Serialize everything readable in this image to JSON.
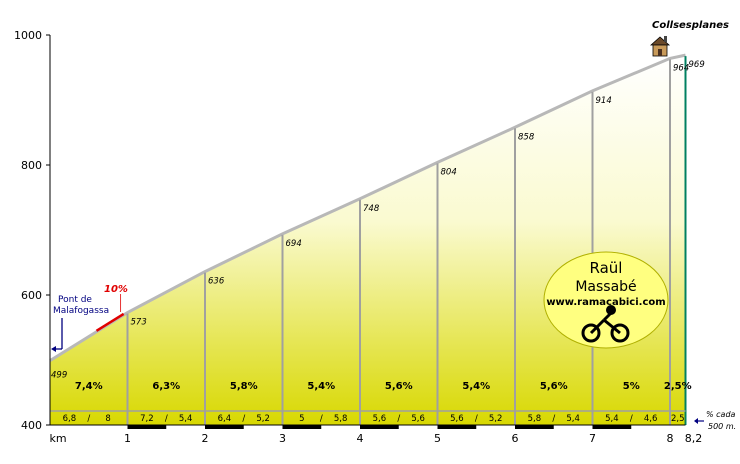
{
  "chart_data": {
    "type": "area",
    "x_unit": "km",
    "y_unit_ticks": [
      400,
      600,
      800,
      1000
    ],
    "xlim": [
      0,
      8.2
    ],
    "ylim": [
      400,
      1000
    ],
    "x_ticks": [
      "km",
      "1",
      "2",
      "3",
      "4",
      "5",
      "6",
      "7",
      "8",
      "8,2"
    ],
    "profile": [
      {
        "km": 0,
        "elev": 499
      },
      {
        "km": 1,
        "elev": 573
      },
      {
        "km": 2,
        "elev": 636
      },
      {
        "km": 3,
        "elev": 694
      },
      {
        "km": 4,
        "elev": 748
      },
      {
        "km": 5,
        "elev": 804
      },
      {
        "km": 6,
        "elev": 858
      },
      {
        "km": 7,
        "elev": 914
      },
      {
        "km": 8,
        "elev": 964
      },
      {
        "km": 8.2,
        "elev": 969
      }
    ],
    "elevation_labels": [
      "499",
      "573",
      "636",
      "694",
      "748",
      "804",
      "858",
      "914",
      "964",
      "969"
    ],
    "segments": [
      {
        "grade": "7,4%",
        "halves": [
          "6,8",
          "8"
        ]
      },
      {
        "grade": "6,3%",
        "halves": [
          "7,2",
          "5,4"
        ]
      },
      {
        "grade": "5,8%",
        "halves": [
          "6,4",
          "5,2"
        ]
      },
      {
        "grade": "5,4%",
        "halves": [
          "5",
          "5,8"
        ]
      },
      {
        "grade": "5,6%",
        "halves": [
          "5,6",
          "5,6"
        ]
      },
      {
        "grade": "5,4%",
        "halves": [
          "5,6",
          "5,2"
        ]
      },
      {
        "grade": "5,6%",
        "halves": [
          "5,8",
          "5,4"
        ]
      },
      {
        "grade": "5%",
        "halves": [
          "5,4",
          "4,6"
        ]
      },
      {
        "grade": "2,5%",
        "halves": [
          "2,5"
        ]
      }
    ],
    "max_grade_label": "10%",
    "max_grade_km": [
      0.6,
      0.95
    ],
    "start_label": [
      "Pont de",
      "Malafogassa"
    ],
    "summit_label": "Collsesplanes",
    "legend_note": [
      "% cada",
      "500 m."
    ],
    "author": {
      "name1": "Raül",
      "name2": "Massabé",
      "site": "www.ramacabici.com"
    },
    "colors": {
      "fill_top": "#ffffff",
      "fill_bottom": "#d8d800",
      "outline": "#b8b8b8",
      "max_grade": "#e00000",
      "divider": "#a0a0a0",
      "last_divider": "#008060",
      "start_arrow": "#000080",
      "logo_fill": "#ffff80"
    }
  }
}
